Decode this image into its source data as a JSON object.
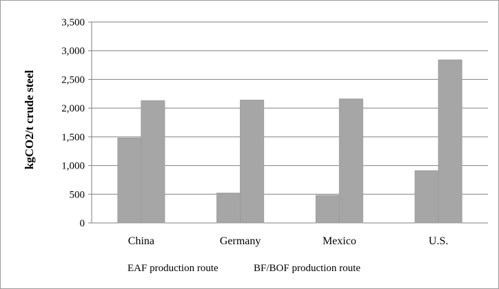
{
  "chart_data": {
    "type": "bar",
    "categories": [
      "China",
      "Germany",
      "Mexico",
      "U.S."
    ],
    "series": [
      {
        "name": "EAF production route",
        "values": [
          1480,
          520,
          480,
          910
        ]
      },
      {
        "name": "BF/BOF production route",
        "values": [
          2130,
          2140,
          2160,
          2840
        ]
      }
    ],
    "ylabel": "kgCO2/t crude steel",
    "ylim": [
      0,
      3500
    ],
    "yticks": [
      "0",
      "500",
      "1,000",
      "1,500",
      "2,000",
      "2,500",
      "3,000",
      "3,500"
    ],
    "grid": true,
    "legend": "bottom",
    "colors": {
      "bar": "#a6a6a6",
      "bar_edge": "#9c9c9c",
      "grid": "#7f7f7f",
      "frame": "#9a9a9a"
    }
  }
}
